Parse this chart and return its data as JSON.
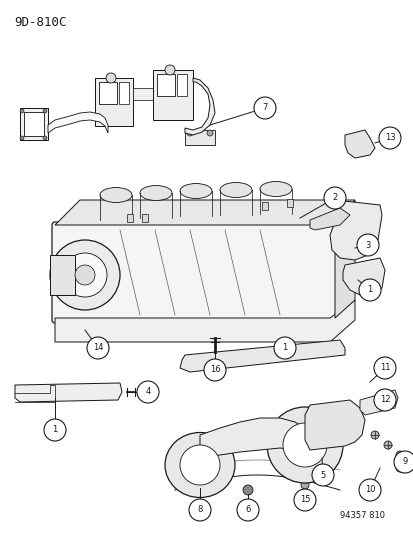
{
  "title": "9D-810C",
  "diagram_id": "94357 810",
  "bg_color": "#ffffff",
  "line_color": "#1a1a1a",
  "fig_width": 4.14,
  "fig_height": 5.33,
  "dpi": 100
}
